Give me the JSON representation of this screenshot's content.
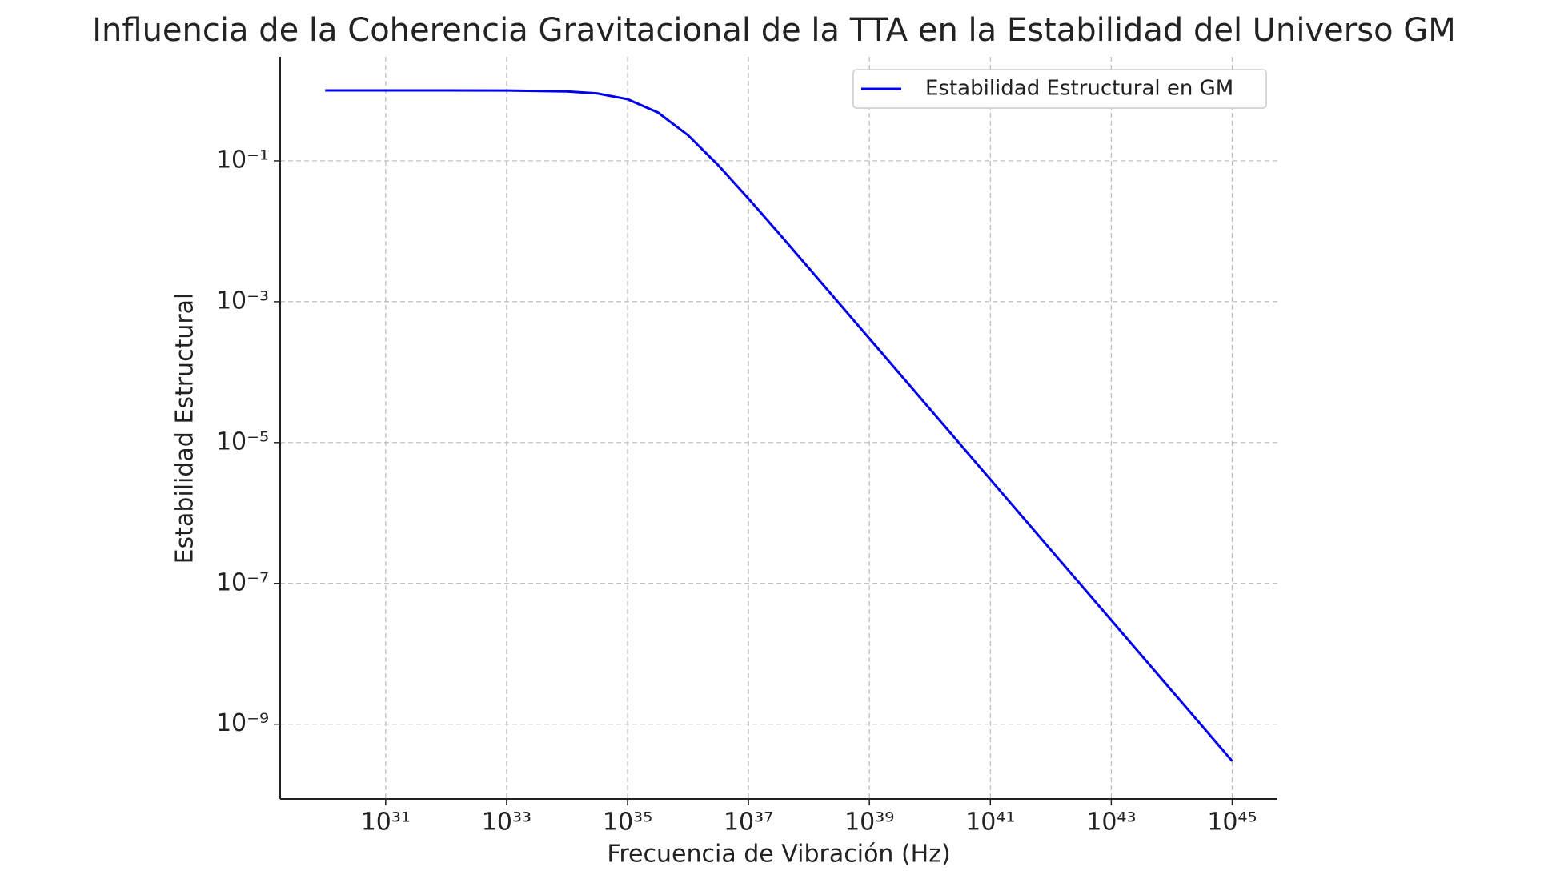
{
  "chart_data": {
    "type": "line",
    "title": "Influencia de la Coherencia Gravitacional de la TTA en la Estabilidad del Universo GM",
    "x_label": "Frecuencia de Vibración (Hz)",
    "y_label": "Estabilidad Estructural",
    "xscale": "log",
    "yscale": "log",
    "grid": true,
    "legend": "upper right",
    "x": [
      1e+30,
      1e+31,
      1e+32,
      1e+33,
      1e+34,
      3.162e+34,
      1e+35,
      3.162e+35,
      1e+36,
      3.162e+36,
      1e+37,
      3.162e+37,
      1e+38,
      1e+39,
      1e+40,
      1e+41,
      1e+42,
      1e+43,
      1e+44,
      1e+45
    ],
    "series": [
      {
        "name": "Estabilidad Estructural en GM",
        "color": "#0000ee",
        "values": [
          1.0,
          0.99997,
          0.9997,
          0.997,
          0.968,
          0.905,
          0.75,
          0.487,
          0.231,
          0.0867,
          0.0291,
          0.0094,
          0.00299,
          0.0003,
          3e-05,
          3e-06,
          3e-07,
          3e-08,
          3e-09,
          3e-10
        ]
      }
    ],
    "xlim": [
      1.8e+29,
      5.6e+45
    ],
    "ylim": [
      8.7e-11,
      3.0
    ],
    "xticks": [
      {
        "value": 1e+31,
        "label": "10³¹"
      },
      {
        "value": 1e+33,
        "label": "10³³"
      },
      {
        "value": 1e+35,
        "label": "10³⁵"
      },
      {
        "value": 1e+37,
        "label": "10³⁷"
      },
      {
        "value": 1e+39,
        "label": "10³⁹"
      },
      {
        "value": 1e+41,
        "label": "10⁴¹"
      },
      {
        "value": 1e+43,
        "label": "10⁴³"
      },
      {
        "value": 1e+45,
        "label": "10⁴⁵"
      }
    ],
    "yticks": [
      {
        "value": 0.1,
        "label": "10⁻¹"
      },
      {
        "value": 0.001,
        "label": "10⁻³"
      },
      {
        "value": 1e-05,
        "label": "10⁻⁵"
      },
      {
        "value": 1e-07,
        "label": "10⁻⁷"
      },
      {
        "value": 1e-09,
        "label": "10⁻⁹"
      }
    ]
  }
}
